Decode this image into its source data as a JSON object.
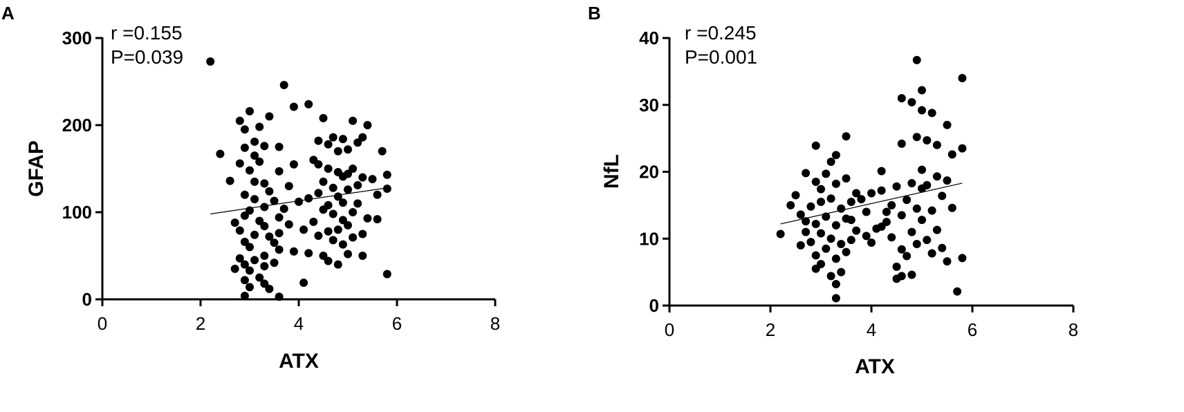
{
  "panels": [
    {
      "letter": "A",
      "stat_r": "r =0.155",
      "stat_p": "P=0.039"
    },
    {
      "letter": "B",
      "stat_r": "r =0.245",
      "stat_p": "P=0.001"
    }
  ],
  "chart_data": [
    {
      "type": "scatter",
      "xlabel": "ATX",
      "ylabel": "GFAP",
      "xlim": [
        0,
        8
      ],
      "ylim": [
        0,
        300
      ],
      "xticks": [
        0,
        2,
        4,
        6,
        8
      ],
      "yticks": [
        0,
        100,
        200,
        300
      ],
      "annotations": [
        "r =0.155",
        "P=0.039"
      ],
      "regression_line": {
        "x": [
          2.2,
          5.8
        ],
        "y": [
          98,
          128
        ]
      },
      "points": [
        [
          2.2,
          273
        ],
        [
          3.7,
          246
        ],
        [
          4.2,
          224
        ],
        [
          3.9,
          221
        ],
        [
          3.0,
          216
        ],
        [
          3.4,
          210
        ],
        [
          4.5,
          208
        ],
        [
          5.1,
          205
        ],
        [
          2.8,
          205
        ],
        [
          5.4,
          200
        ],
        [
          3.2,
          198
        ],
        [
          2.9,
          195
        ],
        [
          4.7,
          186
        ],
        [
          5.3,
          186
        ],
        [
          4.9,
          184
        ],
        [
          4.4,
          182
        ],
        [
          3.1,
          181
        ],
        [
          5.2,
          180
        ],
        [
          4.6,
          178
        ],
        [
          3.3,
          176
        ],
        [
          3.6,
          175
        ],
        [
          2.9,
          174
        ],
        [
          5.0,
          172
        ],
        [
          4.8,
          170
        ],
        [
          5.7,
          170
        ],
        [
          2.4,
          167
        ],
        [
          3.1,
          165
        ],
        [
          4.3,
          160
        ],
        [
          3.2,
          158
        ],
        [
          2.8,
          156
        ],
        [
          4.4,
          155
        ],
        [
          3.9,
          155
        ],
        [
          5.1,
          150
        ],
        [
          4.6,
          150
        ],
        [
          3.0,
          148
        ],
        [
          3.6,
          147
        ],
        [
          4.8,
          146
        ],
        [
          5.0,
          144
        ],
        [
          5.8,
          143
        ],
        [
          4.9,
          141
        ],
        [
          5.3,
          140
        ],
        [
          5.5,
          138
        ],
        [
          2.6,
          136
        ],
        [
          3.1,
          135
        ],
        [
          4.5,
          135
        ],
        [
          3.3,
          133
        ],
        [
          5.2,
          131
        ],
        [
          3.8,
          130
        ],
        [
          4.7,
          128
        ],
        [
          5.8,
          127
        ],
        [
          5.0,
          126
        ],
        [
          3.4,
          124
        ],
        [
          4.4,
          122
        ],
        [
          2.9,
          120
        ],
        [
          5.6,
          120
        ],
        [
          4.8,
          118
        ],
        [
          4.2,
          116
        ],
        [
          3.1,
          115
        ],
        [
          3.5,
          113
        ],
        [
          4.0,
          112
        ],
        [
          4.9,
          111
        ],
        [
          5.2,
          110
        ],
        [
          4.6,
          108
        ],
        [
          3.3,
          106
        ],
        [
          3.7,
          104
        ],
        [
          4.5,
          103
        ],
        [
          3.0,
          102
        ],
        [
          5.1,
          100
        ],
        [
          4.7,
          98
        ],
        [
          2.9,
          96
        ],
        [
          3.6,
          94
        ],
        [
          5.4,
          93
        ],
        [
          5.6,
          92
        ],
        [
          4.9,
          91
        ],
        [
          3.2,
          90
        ],
        [
          4.3,
          89
        ],
        [
          2.7,
          88
        ],
        [
          3.8,
          86
        ],
        [
          5.0,
          85
        ],
        [
          3.3,
          84
        ],
        [
          4.1,
          80
        ],
        [
          4.8,
          80
        ],
        [
          2.8,
          79
        ],
        [
          4.6,
          78
        ],
        [
          3.6,
          76
        ],
        [
          5.3,
          75
        ],
        [
          3.1,
          74
        ],
        [
          4.4,
          73
        ],
        [
          3.4,
          72
        ],
        [
          5.1,
          71
        ],
        [
          4.7,
          68
        ],
        [
          2.9,
          66
        ],
        [
          3.5,
          65
        ],
        [
          4.9,
          63
        ],
        [
          3.0,
          60
        ],
        [
          3.6,
          57
        ],
        [
          3.9,
          55
        ],
        [
          4.2,
          53
        ],
        [
          5.0,
          52
        ],
        [
          3.3,
          50
        ],
        [
          4.5,
          50
        ],
        [
          5.3,
          50
        ],
        [
          2.8,
          47
        ],
        [
          3.1,
          45
        ],
        [
          4.6,
          44
        ],
        [
          3.5,
          42
        ],
        [
          2.9,
          40
        ],
        [
          4.8,
          40
        ],
        [
          3.3,
          38
        ],
        [
          2.7,
          35
        ],
        [
          3.0,
          33
        ],
        [
          5.8,
          29
        ],
        [
          3.2,
          25
        ],
        [
          2.9,
          22
        ],
        [
          4.1,
          19
        ],
        [
          3.3,
          18
        ],
        [
          3.0,
          14
        ],
        [
          2.9,
          4
        ],
        [
          3.6,
          3
        ],
        [
          3.4,
          12
        ]
      ]
    },
    {
      "type": "scatter",
      "xlabel": "ATX",
      "ylabel": "NfL",
      "xlim": [
        0,
        8
      ],
      "ylim": [
        0,
        40
      ],
      "xticks": [
        0,
        2,
        4,
        6,
        8
      ],
      "yticks": [
        0,
        10,
        20,
        30,
        40
      ],
      "annotations": [
        "r =0.245",
        "P=0.001"
      ],
      "regression_line": {
        "x": [
          2.2,
          5.8
        ],
        "y": [
          12.2,
          18.3
        ]
      },
      "points": [
        [
          4.9,
          36.7
        ],
        [
          5.8,
          34.0
        ],
        [
          5.0,
          32.2
        ],
        [
          4.6,
          31.0
        ],
        [
          4.8,
          30.4
        ],
        [
          5.0,
          29.2
        ],
        [
          5.2,
          28.8
        ],
        [
          5.5,
          27.0
        ],
        [
          3.5,
          25.3
        ],
        [
          4.9,
          25.2
        ],
        [
          5.1,
          24.7
        ],
        [
          4.6,
          24.2
        ],
        [
          5.3,
          24.0
        ],
        [
          2.9,
          23.9
        ],
        [
          5.8,
          23.5
        ],
        [
          3.3,
          22.5
        ],
        [
          5.6,
          22.6
        ],
        [
          3.2,
          21.5
        ],
        [
          5.0,
          20.3
        ],
        [
          4.2,
          20.1
        ],
        [
          2.7,
          19.8
        ],
        [
          3.1,
          19.7
        ],
        [
          5.3,
          19.3
        ],
        [
          3.5,
          19.0
        ],
        [
          5.5,
          18.7
        ],
        [
          2.9,
          18.5
        ],
        [
          4.8,
          18.3
        ],
        [
          3.3,
          18.2
        ],
        [
          5.1,
          18.0
        ],
        [
          4.5,
          17.8
        ],
        [
          3.0,
          17.4
        ],
        [
          4.2,
          17.2
        ],
        [
          3.7,
          16.8
        ],
        [
          5.4,
          16.4
        ],
        [
          2.5,
          16.5
        ],
        [
          3.2,
          16.0
        ],
        [
          4.7,
          15.8
        ],
        [
          3.6,
          15.5
        ],
        [
          4.4,
          15.0
        ],
        [
          2.8,
          14.8
        ],
        [
          3.4,
          14.5
        ],
        [
          4.9,
          14.5
        ],
        [
          3.9,
          14.0
        ],
        [
          5.2,
          14.2
        ],
        [
          2.6,
          13.6
        ],
        [
          3.1,
          13.3
        ],
        [
          4.6,
          13.5
        ],
        [
          3.5,
          13.0
        ],
        [
          5.0,
          12.8
        ],
        [
          4.3,
          12.5
        ],
        [
          2.9,
          12.2
        ],
        [
          3.3,
          12.0
        ],
        [
          4.1,
          11.5
        ],
        [
          3.7,
          11.2
        ],
        [
          5.3,
          11.3
        ],
        [
          2.7,
          11.0
        ],
        [
          4.8,
          11.0
        ],
        [
          3.0,
          10.8
        ],
        [
          3.9,
          10.4
        ],
        [
          2.2,
          10.7
        ],
        [
          4.4,
          10.2
        ],
        [
          3.2,
          10.0
        ],
        [
          3.6,
          9.8
        ],
        [
          5.1,
          9.8
        ],
        [
          2.8,
          9.5
        ],
        [
          4.0,
          9.4
        ],
        [
          3.4,
          9.2
        ],
        [
          4.9,
          9.2
        ],
        [
          2.6,
          9.0
        ],
        [
          5.4,
          8.6
        ],
        [
          3.1,
          8.5
        ],
        [
          4.6,
          8.4
        ],
        [
          3.5,
          8.0
        ],
        [
          5.2,
          7.8
        ],
        [
          2.9,
          7.5
        ],
        [
          4.7,
          7.4
        ],
        [
          3.3,
          7.0
        ],
        [
          5.8,
          7.1
        ],
        [
          5.5,
          6.6
        ],
        [
          3.0,
          6.2
        ],
        [
          4.5,
          5.8
        ],
        [
          2.9,
          5.5
        ],
        [
          3.4,
          5.0
        ],
        [
          4.6,
          4.4
        ],
        [
          3.2,
          4.4
        ],
        [
          4.8,
          4.6
        ],
        [
          3.3,
          3.2
        ],
        [
          4.5,
          4.0
        ],
        [
          5.7,
          2.1
        ],
        [
          3.3,
          1.1
        ],
        [
          5.0,
          17.5
        ],
        [
          4.0,
          16.8
        ],
        [
          3.8,
          15.9
        ],
        [
          2.4,
          15.0
        ],
        [
          4.3,
          14.0
        ],
        [
          5.6,
          14.6
        ],
        [
          3.6,
          12.8
        ],
        [
          2.7,
          12.6
        ],
        [
          4.2,
          11.8
        ],
        [
          3.0,
          15.5
        ]
      ]
    }
  ]
}
